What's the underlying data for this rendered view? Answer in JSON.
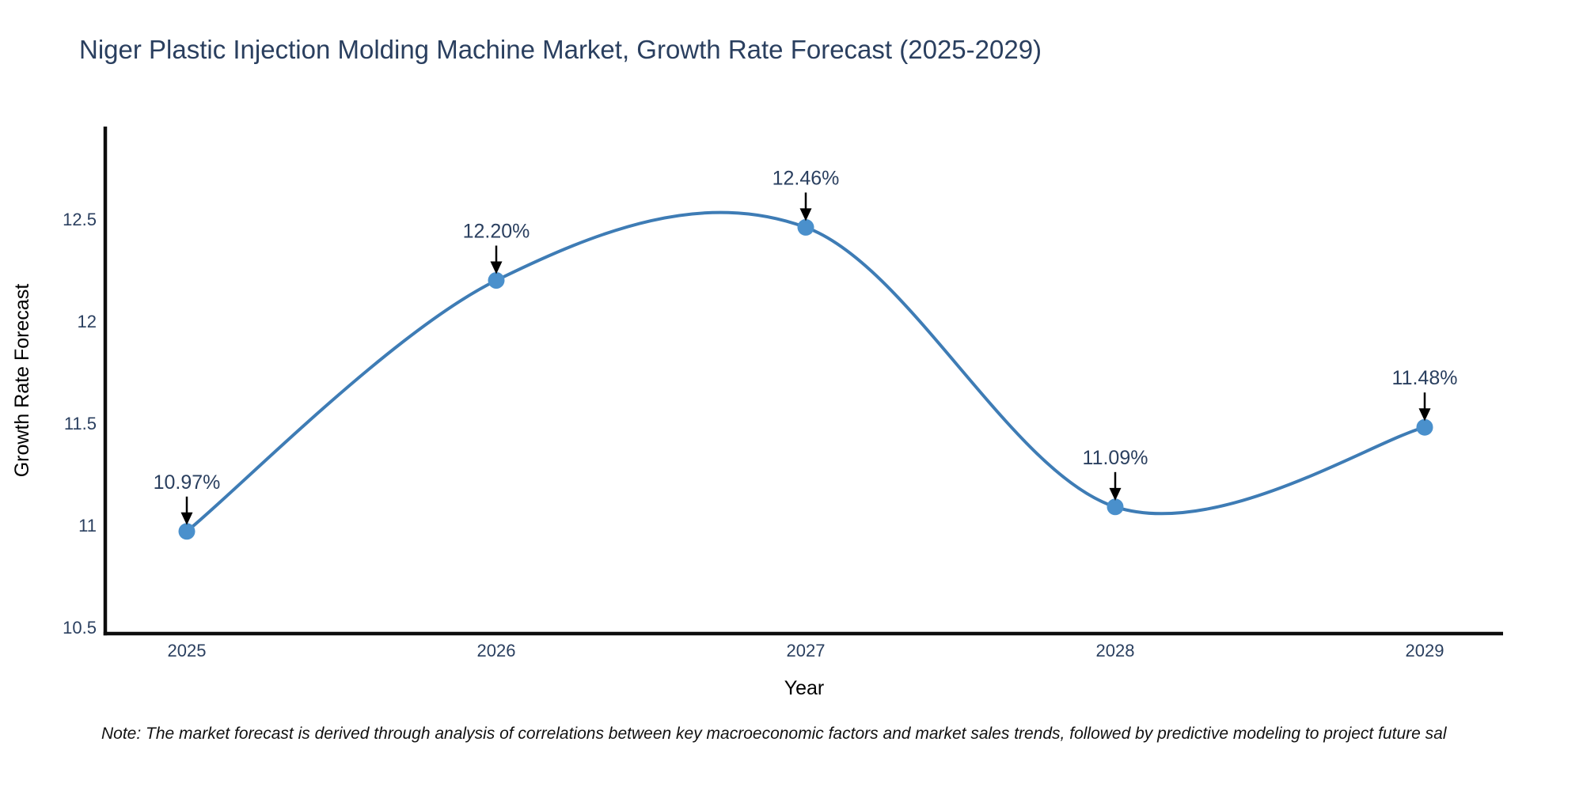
{
  "note": "Note: The market forecast is derived through analysis of correlations between key macroeconomic factors and market sales trends, followed by predictive modeling to project future sal",
  "chart_data": {
    "type": "line",
    "title": "Niger Plastic Injection Molding Machine Market, Growth Rate Forecast (2025-2029)",
    "xlabel": "Year",
    "ylabel": "Growth Rate Forecast",
    "categories": [
      "2025",
      "2026",
      "2027",
      "2028",
      "2029"
    ],
    "values": [
      10.97,
      12.2,
      12.46,
      11.09,
      11.48
    ],
    "point_labels": [
      "10.97%",
      "12.20%",
      "12.46%",
      "11.09%",
      "11.48%"
    ],
    "yticks": [
      10.5,
      11,
      11.5,
      12,
      12.5
    ],
    "ytick_labels": [
      "10.5",
      "11",
      "11.5",
      "12",
      "12.5"
    ],
    "ylim": [
      10.469,
      12.954
    ],
    "line_shape": "spline",
    "grid": false,
    "legend": "none",
    "markers": true,
    "annotation_style": "label-with-down-arrow",
    "colors": {
      "line": "#3e7cb5",
      "marker": "#4a90cc",
      "text": "#2a3f5f",
      "axis": "#0d0d0d",
      "arrow": "#000000",
      "note_text": "#111111",
      "background": "#ffffff"
    }
  }
}
